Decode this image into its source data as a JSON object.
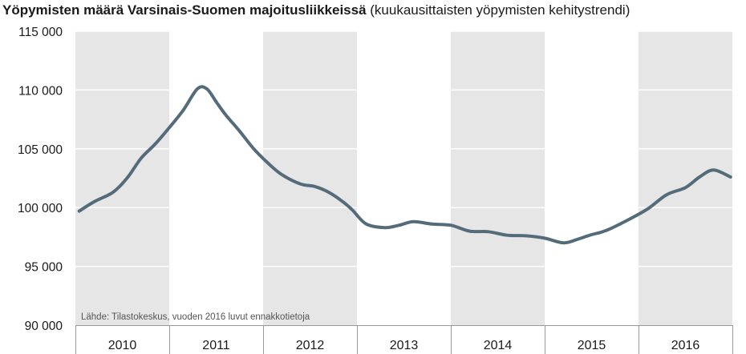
{
  "chart_data": {
    "type": "line",
    "title": "Yöpymisten määrä Varsinais-Suomen majoitusliikkeissä",
    "subtitle": "(kuukausittaisten yöpymisten kehitystrendi)",
    "xlabel": "",
    "ylabel": "",
    "source_note": "Lähde: Tilastokeskus, vuoden 2016 luvut ennakkotietoja",
    "ylim": [
      90000,
      115000
    ],
    "yticks": [
      90000,
      95000,
      100000,
      105000,
      110000,
      115000
    ],
    "ytick_labels": [
      "90 000",
      "95 000",
      "100 000",
      "105 000",
      "110 000",
      "115 000"
    ],
    "xlim": [
      2010.0,
      2017.0
    ],
    "year_labels": [
      "2010",
      "2011",
      "2012",
      "2013",
      "2014",
      "2015",
      "2016"
    ],
    "grid": true,
    "colors": {
      "line": "#546b7a",
      "shade": "#e6e6e6",
      "grid": "#ffffff",
      "axis": "#999999",
      "text": "#1a1a1a"
    },
    "series": [
      {
        "x": [
          2010.04,
          2010.2,
          2010.4,
          2010.55,
          2010.7,
          2010.85,
          2011.0,
          2011.15,
          2011.3,
          2011.4,
          2011.5,
          2011.6,
          2011.75,
          2011.9,
          2012.05,
          2012.2,
          2012.4,
          2012.55,
          2012.7,
          2012.85,
          2012.95,
          2013.1,
          2013.3,
          2013.45,
          2013.6,
          2013.8,
          2014.0,
          2014.2,
          2014.4,
          2014.6,
          2014.8,
          2015.0,
          2015.2,
          2015.35,
          2015.5,
          2015.6,
          2015.7,
          2015.9,
          2016.1,
          2016.3,
          2016.5,
          2016.65,
          2016.8,
          2016.98
        ],
        "y": [
          99700,
          100500,
          101300,
          102500,
          104200,
          105400,
          106800,
          108300,
          110100,
          110100,
          109000,
          107900,
          106500,
          105000,
          103800,
          102800,
          102000,
          101800,
          101300,
          100500,
          99800,
          98600,
          98300,
          98500,
          98800,
          98600,
          98500,
          98000,
          97950,
          97650,
          97600,
          97400,
          97000,
          97300,
          97700,
          97900,
          98200,
          99000,
          99900,
          101100,
          101700,
          102600,
          103200,
          102600
        ]
      }
    ]
  }
}
